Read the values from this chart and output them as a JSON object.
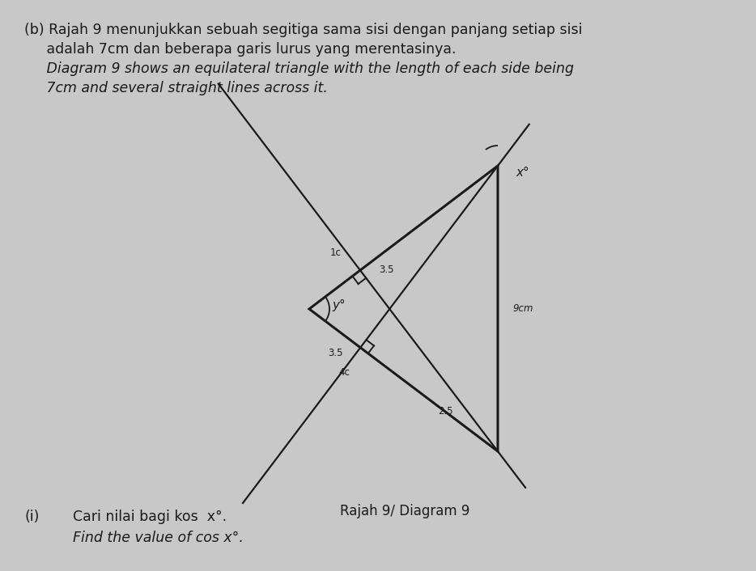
{
  "background_color": "#c8c8c8",
  "line_color": "#1a1a1a",
  "text_color": "#1a1a1a",
  "title_line1": "(b) Rajah 9 menunjukkan sebuah segitiga sama sisi dengan panjang setiap sisi",
  "title_line2": "     adalah 7cm dan beberapa garis lurus yang merentasinya.",
  "title_line3": "     Diagram 9 shows an equilateral triangle with the length of each side being",
  "title_line4": "     7cm and several straight lines across it.",
  "diagram_label": "Rajah 9/ Diagram 9",
  "question_prefix": "(i)",
  "question_malay": "Cari nilai bagi kos  x°.",
  "question_english": "Find the value of cos x°.",
  "label_x": "x°",
  "label_y": "y°",
  "label_1c": "1c",
  "label_35_right": "3.5",
  "label_35_left": "3.5",
  "label_4c": "4c",
  "label_25": "2.5",
  "label_9cm": "9cm",
  "fs_title": 12.5,
  "fs_diagram": 11,
  "fs_label": 10,
  "fs_small": 8.5
}
